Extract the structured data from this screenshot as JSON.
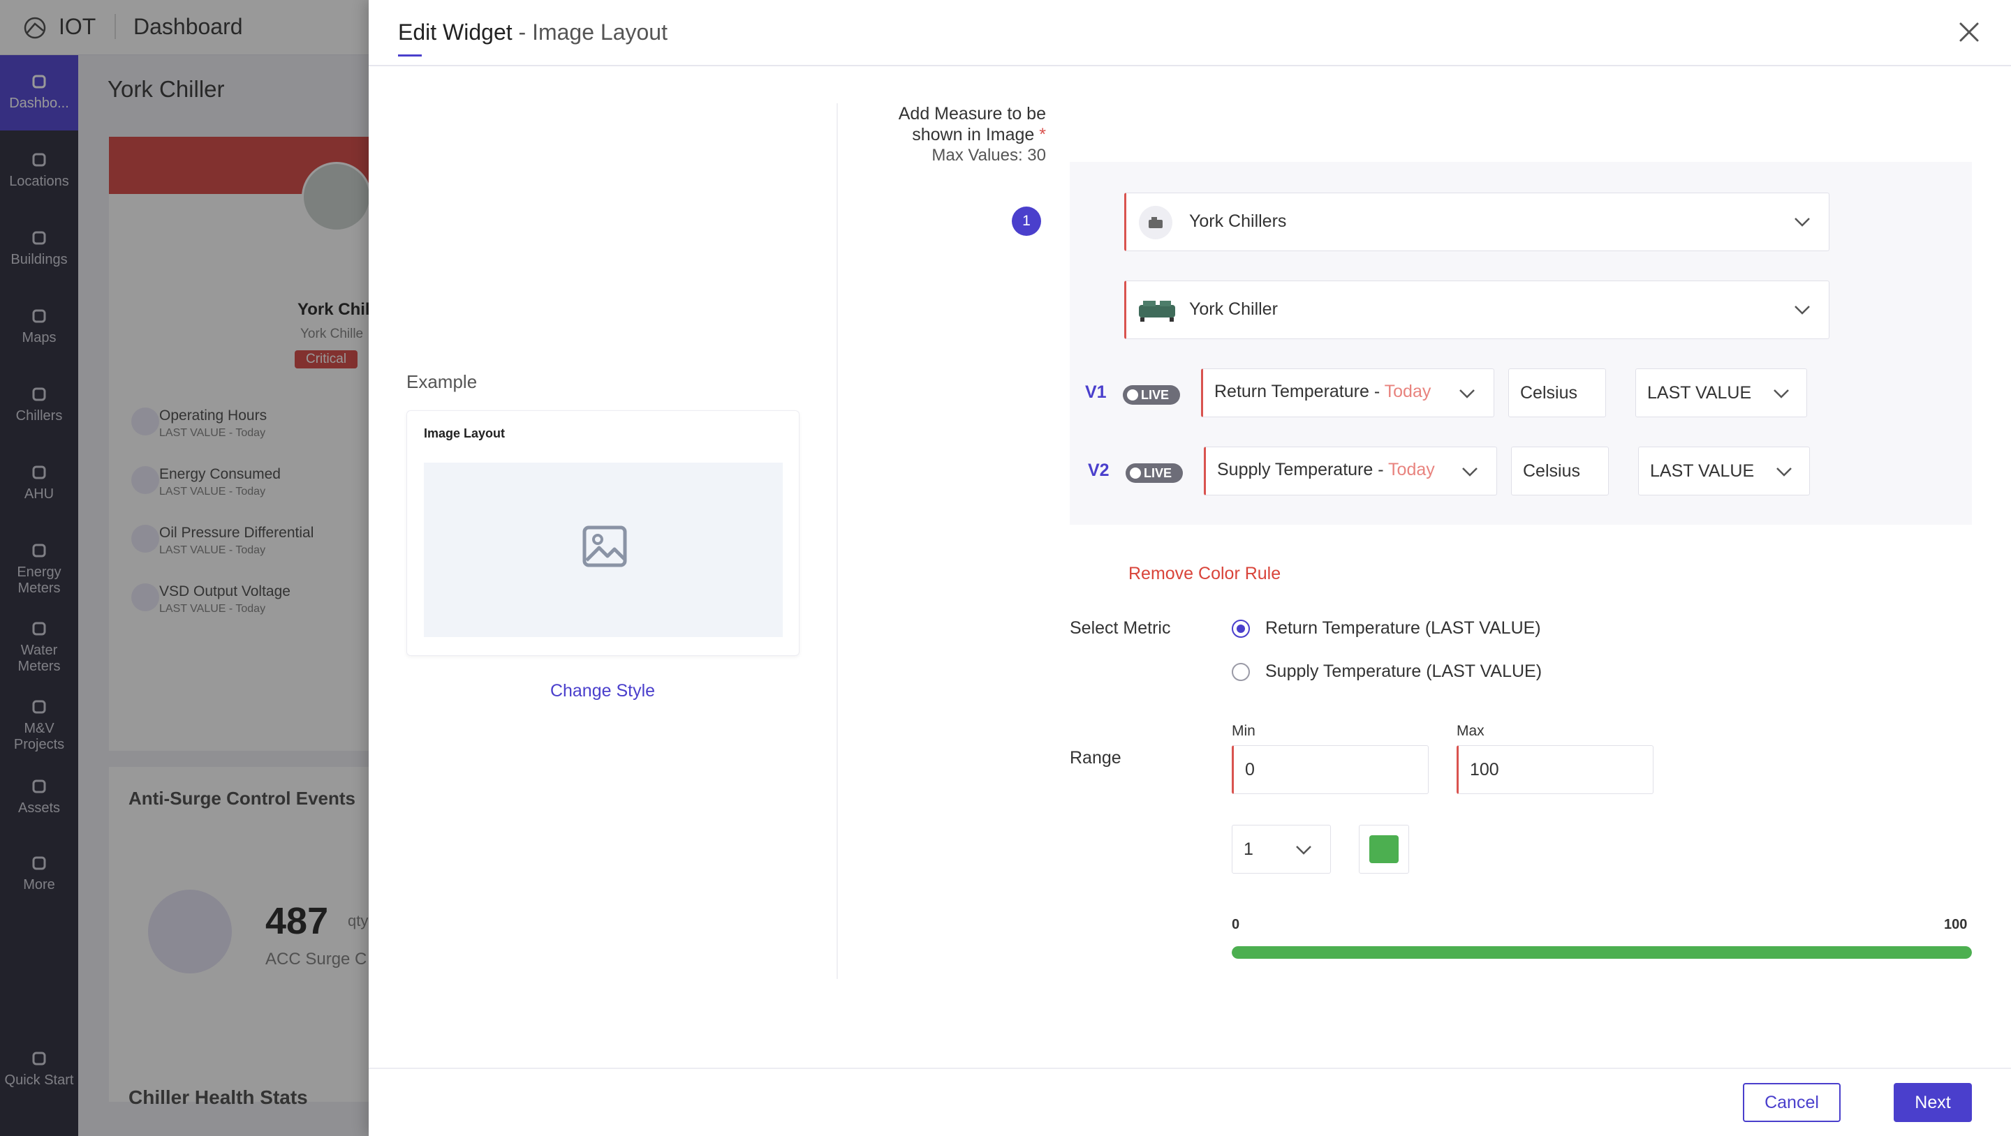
{
  "app": {
    "logo": "IOT",
    "page_title": "Dashboard",
    "sidebar": [
      {
        "label": "Dashbo...",
        "icon": "dashboard-icon",
        "active": true
      },
      {
        "label": "Locations",
        "icon": "location-icon"
      },
      {
        "label": "Buildings",
        "icon": "building-icon"
      },
      {
        "label": "Maps",
        "icon": "map-pin-icon"
      },
      {
        "label": "Chillers",
        "icon": "chiller-icon"
      },
      {
        "label": "AHU",
        "icon": "ahu-icon"
      },
      {
        "label": "Energy Meters",
        "icon": "energy-meter-icon"
      },
      {
        "label": "Water Meters",
        "icon": "water-meter-icon"
      },
      {
        "label": "M&V Projects",
        "icon": "projects-icon"
      },
      {
        "label": "Assets",
        "icon": "assets-icon"
      },
      {
        "label": "More",
        "icon": "more-icon"
      },
      {
        "label": "Quick Start",
        "icon": "magic-wand-icon"
      }
    ],
    "dashboard": {
      "title": "York Chiller",
      "card_name": "York Chill",
      "card_sub": "York Chille",
      "status": "Critical",
      "metrics": [
        {
          "name": "Operating Hours",
          "sub": "LAST VALUE - Today"
        },
        {
          "name": "Energy Consumed",
          "sub": "LAST VALUE - Today"
        },
        {
          "name": "Oil Pressure Differential",
          "sub": "LAST VALUE - Today"
        },
        {
          "name": "VSD Output Voltage",
          "sub": "LAST VALUE - Today"
        }
      ],
      "events_title": "Anti-Surge Control Events",
      "events_value": "487",
      "events_unit": "qty",
      "events_caption": "ACC Surge C",
      "health_title": "Chiller Health Stats"
    }
  },
  "modal": {
    "title": "Edit Widget",
    "subtitle": "- Image Layout",
    "example": {
      "label": "Example",
      "card_title": "Image Layout",
      "change_style": "Change Style"
    },
    "measure": {
      "label": "Add Measure to be shown in Image",
      "required": "*",
      "max_values": "Max Values: 30",
      "step": "1",
      "category": "York Chillers",
      "asset": "York Chiller",
      "rows": [
        {
          "label": "V1",
          "live": "LIVE",
          "metric": "Return Temperature",
          "period": "Today",
          "unit": "Celsius",
          "aggregation": "LAST VALUE"
        },
        {
          "label": "V2",
          "live": "LIVE",
          "metric": "Supply Temperature",
          "period": "Today",
          "unit": "Celsius",
          "aggregation": "LAST VALUE"
        }
      ]
    },
    "color_rule": {
      "remove_label": "Remove Color Rule",
      "select_metric_label": "Select Metric",
      "options": [
        {
          "label": "Return Temperature (LAST VALUE)",
          "selected": true
        },
        {
          "label": "Supply Temperature (LAST VALUE)",
          "selected": false
        }
      ],
      "range_label": "Range",
      "min_label": "Min",
      "min_value": "0",
      "max_label": "Max",
      "max_value": "100",
      "count": "1",
      "color": "#4caf50",
      "scale_min": "0",
      "scale_max": "100",
      "scale_fill_fraction": 1.0
    },
    "footer": {
      "cancel": "Cancel",
      "next": "Next"
    }
  }
}
